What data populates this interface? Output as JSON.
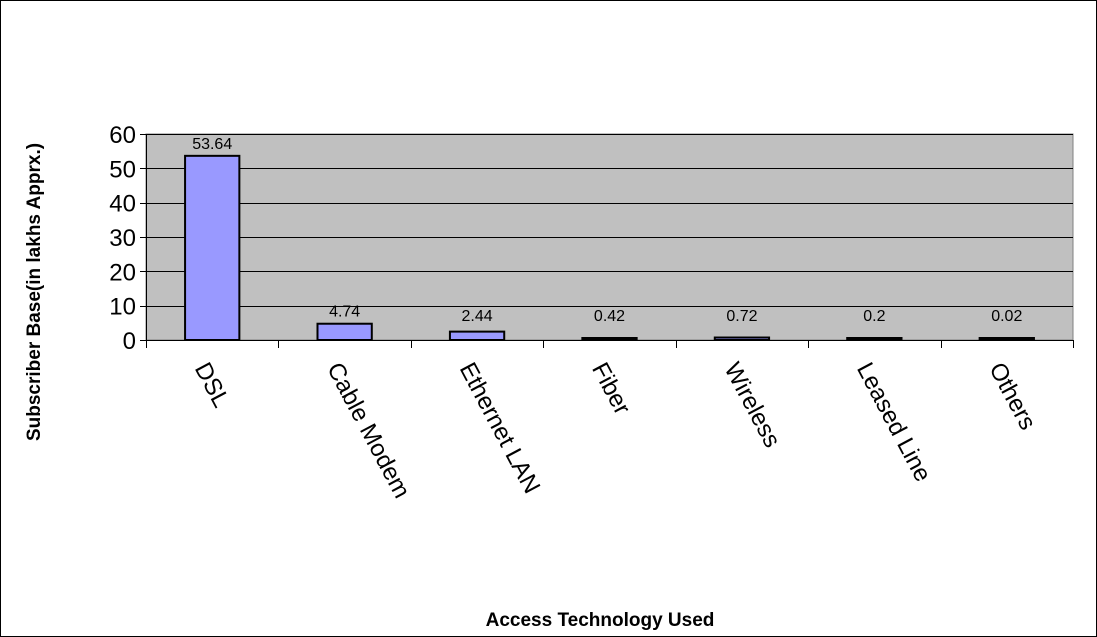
{
  "chart_data": {
    "type": "bar",
    "title": "",
    "xlabel": "Access Technology Used",
    "ylabel": "Subscriber Base(in lakhs Apprx.)",
    "categories": [
      "DSL",
      "Cable Modem",
      "Ethernet LAN",
      "Fiber",
      "Wireless",
      "Leased Line",
      "Others"
    ],
    "values": [
      53.64,
      4.74,
      2.44,
      0.42,
      0.72,
      0.2,
      0.02
    ],
    "data_labels": [
      "53.64",
      "4.74",
      "2.44",
      "0.42",
      "0.72",
      "0.2",
      "0.02"
    ],
    "ylim": [
      0,
      60
    ],
    "yticks": [
      0,
      10,
      20,
      30,
      40,
      50,
      60
    ],
    "ytick_labels": [
      "0",
      "10",
      "20",
      "30",
      "40",
      "50",
      "60"
    ],
    "grid": true,
    "legend": "none",
    "colors": {
      "bar_fill": "#9999ff",
      "bar_stroke": "#000000",
      "plot_background": "#c0c0c0",
      "gridline": "#000000"
    }
  }
}
